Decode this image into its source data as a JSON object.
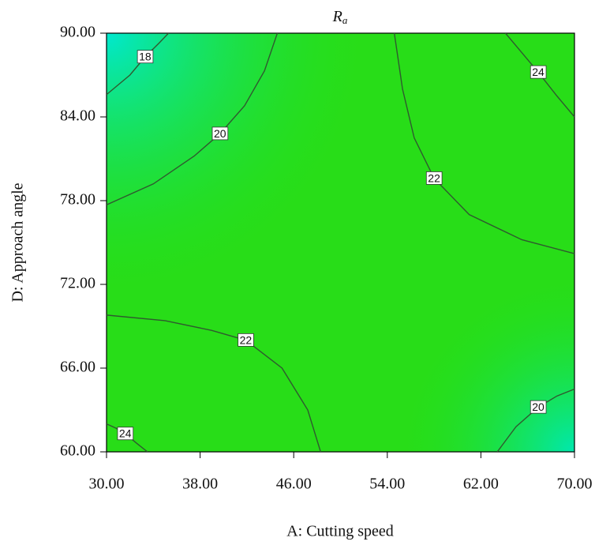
{
  "chart_data": {
    "type": "contour",
    "title": "R",
    "title_subscript": "a",
    "x_label": "A: Cutting speed",
    "y_label": "D: Approach angle",
    "xlim": [
      30,
      70
    ],
    "ylim": [
      60,
      90
    ],
    "xticks": [
      {
        "value": 30,
        "label": "30.00"
      },
      {
        "value": 38,
        "label": "38.00"
      },
      {
        "value": 46,
        "label": "46.00"
      },
      {
        "value": 54,
        "label": "54.00"
      },
      {
        "value": 62,
        "label": "62.00"
      },
      {
        "value": 70,
        "label": "70.00"
      }
    ],
    "yticks": [
      {
        "value": 60,
        "label": "60.00"
      },
      {
        "value": 66,
        "label": "66.00"
      },
      {
        "value": 72,
        "label": "72.00"
      },
      {
        "value": 78,
        "label": "78.00"
      },
      {
        "value": 84,
        "label": "84.00"
      },
      {
        "value": 90,
        "label": "90.00"
      }
    ],
    "line_color": "#2f5a2f",
    "contours": [
      {
        "level": 18,
        "x": [
          30,
          32,
          33.3,
          34.5,
          35.3
        ],
        "y": [
          85.6,
          87,
          88.3,
          89.3,
          90
        ]
      },
      {
        "level": 20,
        "x": [
          30,
          34,
          37.5,
          39.7,
          41.8,
          43.5,
          44.6
        ],
        "y": [
          77.7,
          79.2,
          81.2,
          82.8,
          84.8,
          87.3,
          90
        ]
      },
      {
        "level": 22,
        "x": [
          54.6,
          55.3,
          56.3,
          58,
          61,
          65.5,
          70
        ],
        "y": [
          90,
          86,
          82.5,
          79.6,
          77,
          75.2,
          74.2
        ]
      },
      {
        "level": 24,
        "x": [
          64.1,
          65.5,
          66.9,
          68.5,
          70
        ],
        "y": [
          90,
          88.6,
          87.2,
          85.5,
          84
        ]
      },
      {
        "level": 22,
        "x": [
          30,
          35,
          39,
          41.9,
          45,
          47.2,
          48.3
        ],
        "y": [
          69.8,
          69.4,
          68.7,
          68,
          66,
          63,
          60
        ]
      },
      {
        "level": 24,
        "x": [
          30,
          30.8,
          31.6,
          32.6,
          33.5
        ],
        "y": [
          62,
          61.7,
          61.3,
          60.6,
          60
        ]
      },
      {
        "level": 20,
        "x": [
          63.4,
          65,
          66.9,
          68.5,
          70
        ],
        "y": [
          60,
          61.8,
          63.2,
          64,
          64.5
        ]
      }
    ]
  }
}
